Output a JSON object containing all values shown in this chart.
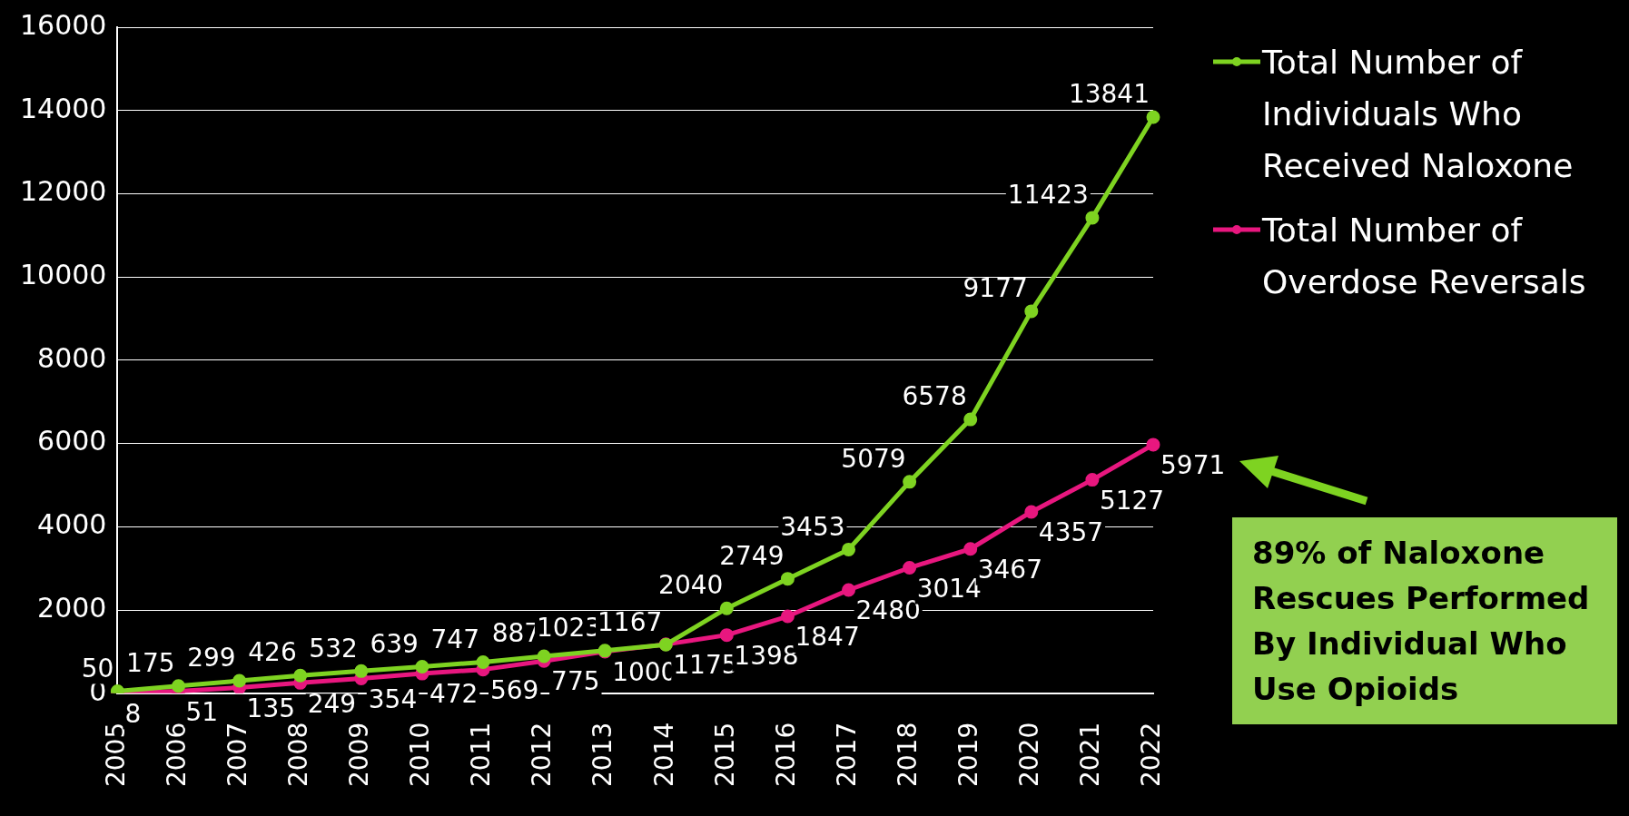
{
  "chart_data": {
    "type": "line",
    "categories": [
      "2005",
      "2006",
      "2007",
      "2008",
      "2009",
      "2010",
      "2011",
      "2012",
      "2013",
      "2014",
      "2015",
      "2016",
      "2017",
      "2018",
      "2019",
      "2020",
      "2021",
      "2022"
    ],
    "series": [
      {
        "name": "Total Number of Individuals Who Received Naloxone",
        "color": "#7ed321",
        "values": [
          50,
          175,
          299,
          426,
          532,
          639,
          747,
          887,
          1023,
          1167,
          2040,
          2749,
          3453,
          5079,
          6578,
          9177,
          11423,
          13841
        ]
      },
      {
        "name": "Total Number of Overdose Reversals",
        "color": "#e8177f",
        "values": [
          8,
          51,
          135,
          249,
          354,
          472,
          569,
          775,
          1000,
          1175,
          1398,
          1847,
          2480,
          3014,
          3467,
          4357,
          5127,
          5971
        ]
      }
    ],
    "ylim": [
      0,
      16000
    ],
    "yticks": [
      0,
      2000,
      4000,
      6000,
      8000,
      10000,
      12000,
      14000,
      16000
    ],
    "grid": "y",
    "legend": "top right",
    "marker": "circle",
    "line_style": "solid",
    "data_labels": true,
    "annotations": [
      "89% of Naloxone Rescues Performed By Individual Who Use Opioids"
    ]
  }
}
